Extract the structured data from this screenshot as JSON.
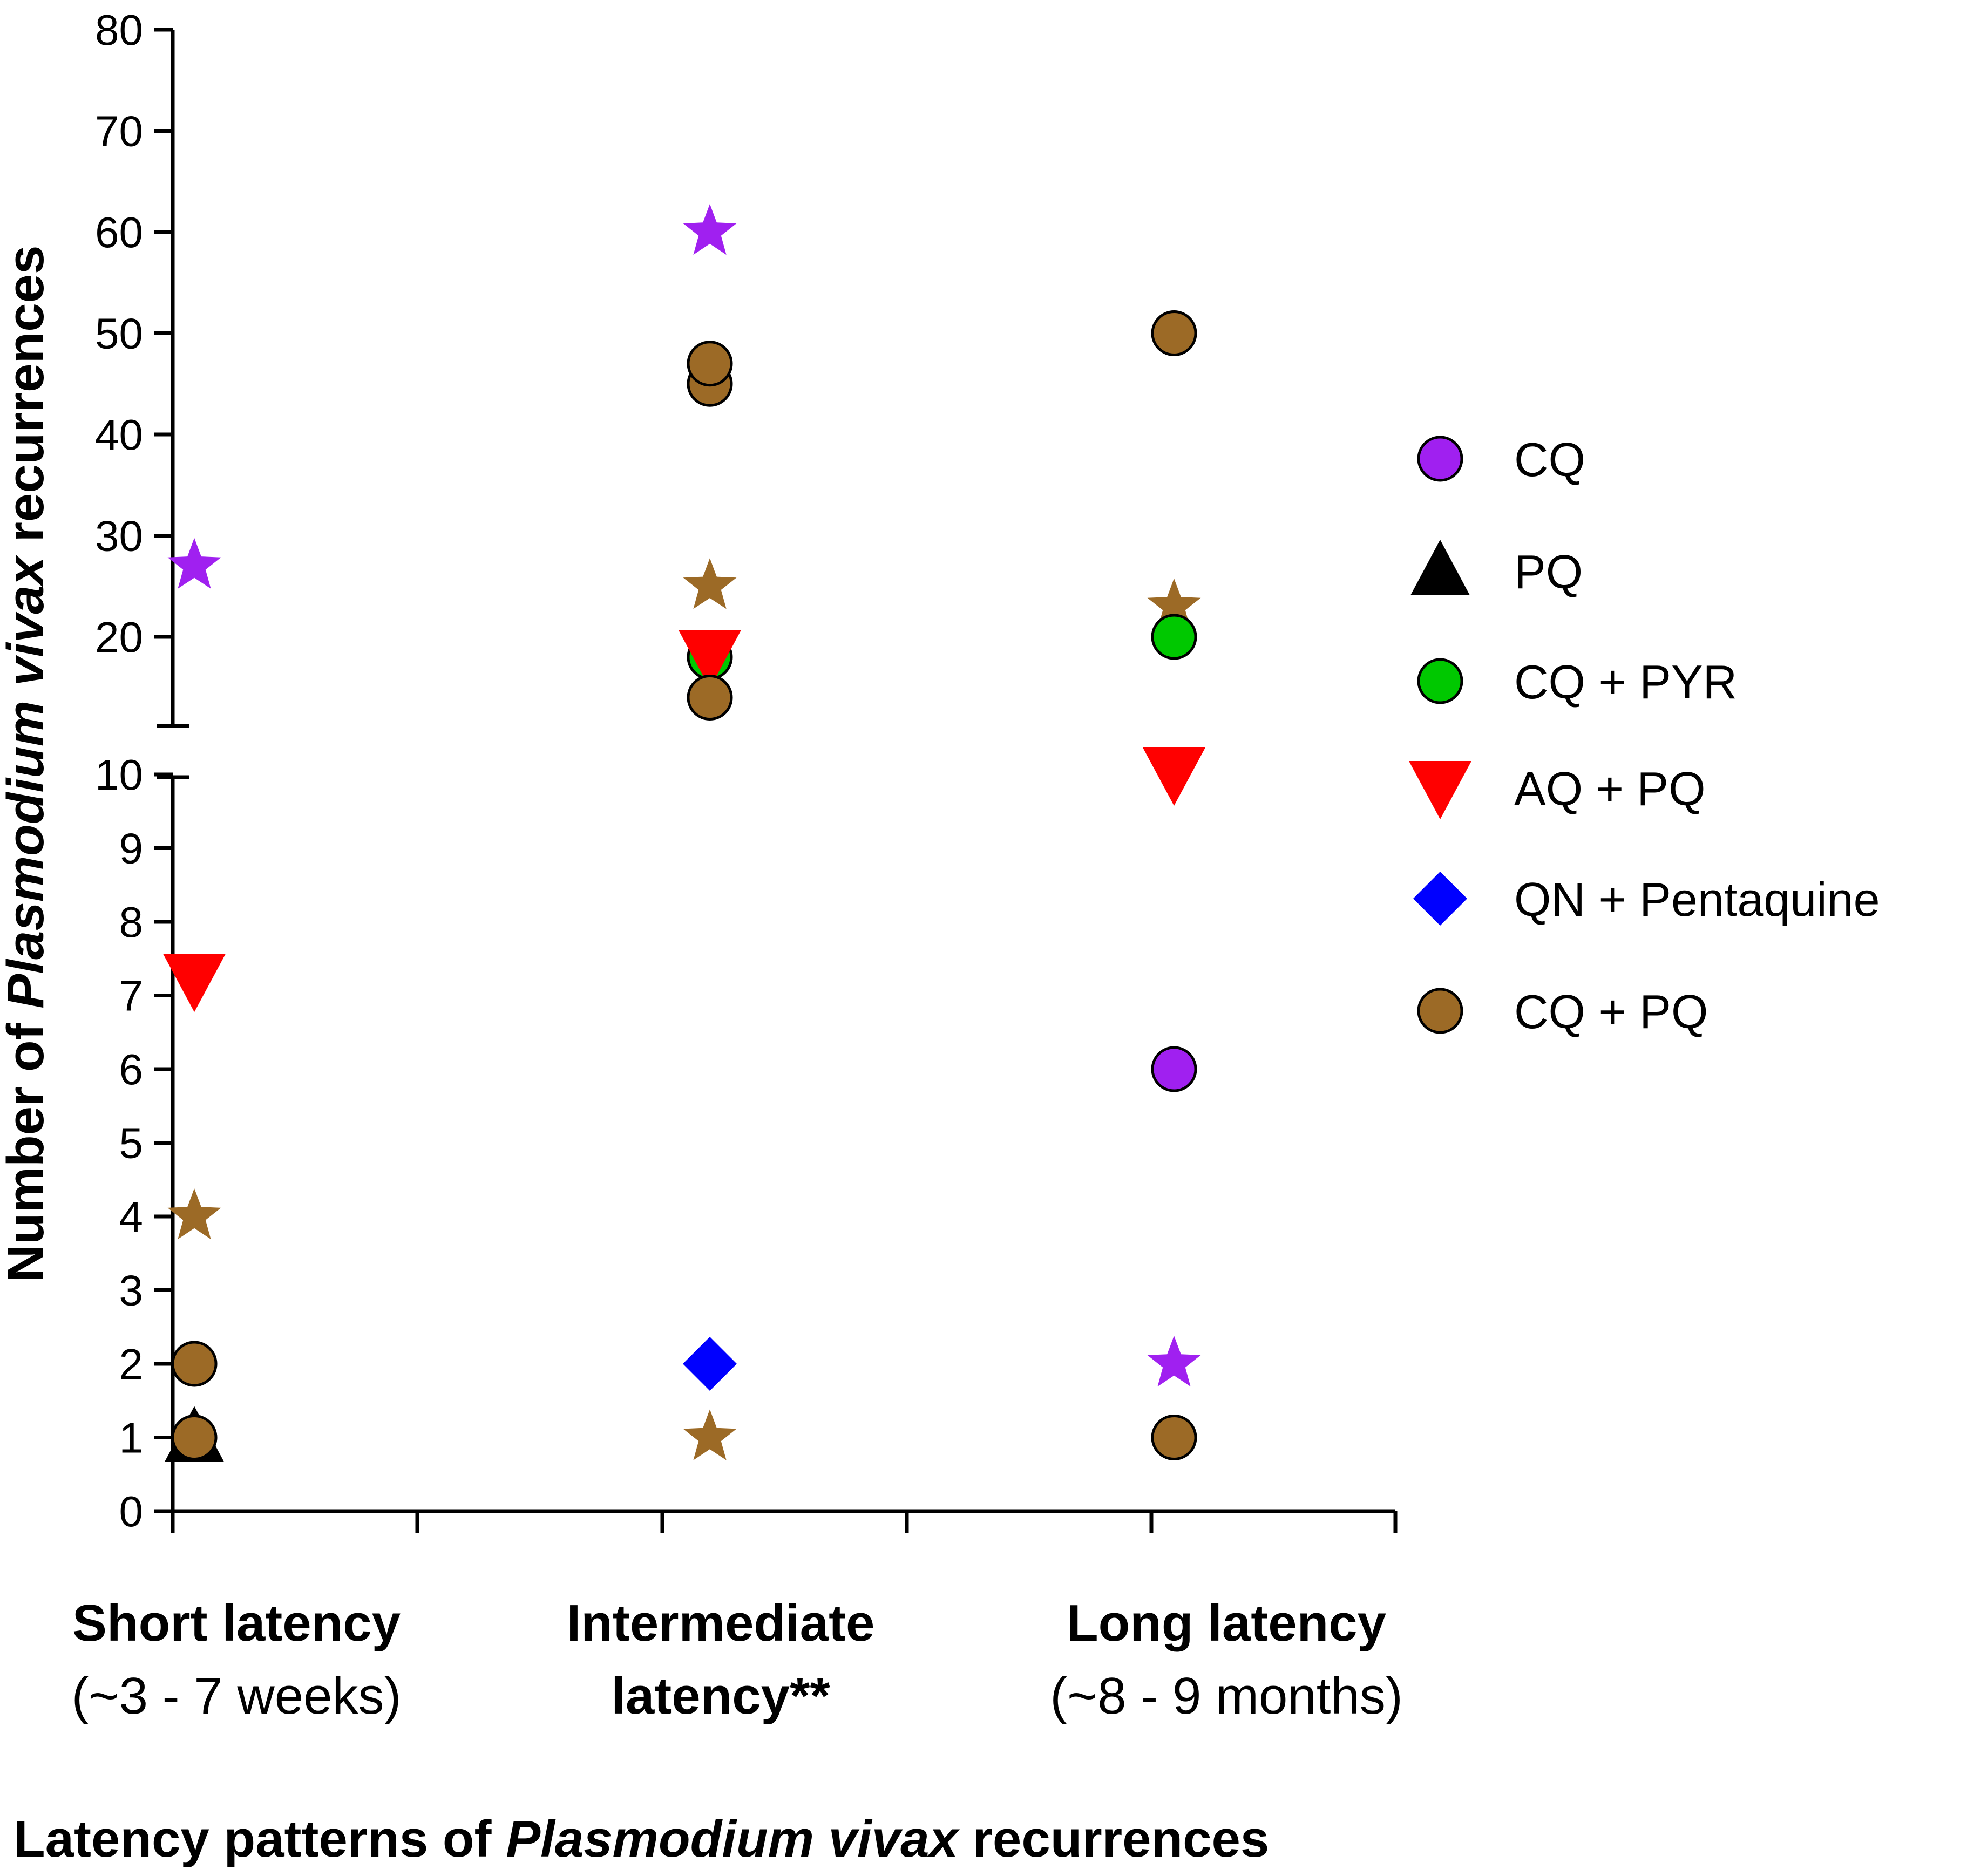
{
  "chart_data": {
    "type": "scatter",
    "title": "",
    "xlabel": {
      "prefix": "Latency patterns of ",
      "italic": "Plasmodium vivax",
      "suffix": " recurrences"
    },
    "ylabel": {
      "prefix": "Number of ",
      "italic": "Plasmodium vivax",
      "suffix": " recurrences"
    },
    "y_axis_break": {
      "lower_range": [
        0,
        10
      ],
      "upper_range": [
        10,
        80
      ],
      "lower_ticks": [
        "0",
        "1",
        "2",
        "3",
        "4",
        "5",
        "6",
        "7",
        "8",
        "9",
        "10"
      ],
      "upper_ticks": [
        "20",
        "30",
        "40",
        "50",
        "60",
        "70",
        "80"
      ]
    },
    "categories": [
      {
        "line1": "Short latency",
        "line2": "(~3 - 7 weeks)",
        "line1_bold": true,
        "line2_bold": false
      },
      {
        "line1": "Intermediate",
        "line2": "latency**",
        "line1_bold": true,
        "line2_bold": true
      },
      {
        "line1": "Long latency",
        "line2": "(~8 - 9 months)",
        "line1_bold": true,
        "line2_bold": false
      }
    ],
    "legend": {
      "position": "right",
      "entries": [
        {
          "label": "CQ",
          "shape": "circle",
          "color": "#a020f0"
        },
        {
          "label": "PQ",
          "shape": "triangle-up",
          "color": "#000000"
        },
        {
          "label": "CQ + PYR",
          "shape": "circle",
          "color": "#00c800"
        },
        {
          "label": "AQ + PQ",
          "shape": "triangle-down",
          "color": "#ff0000"
        },
        {
          "label": "QN + Pentaquine",
          "shape": "diamond",
          "color": "#0000ff"
        },
        {
          "label": "CQ + PQ",
          "shape": "circle",
          "color": "#9c6a26"
        }
      ]
    },
    "points": [
      {
        "category": 0,
        "y": 27,
        "shape": "star",
        "color": "#a020f0",
        "offset": 0.05
      },
      {
        "category": 0,
        "y": 7.2,
        "shape": "triangle-down",
        "color": "#ff0000",
        "offset": 0.05
      },
      {
        "category": 0,
        "y": 4,
        "shape": "star",
        "color": "#9c6a26",
        "offset": 0.05
      },
      {
        "category": 0,
        "y": 2,
        "shape": "circle",
        "color": "#9c6a26",
        "offset": 0.05
      },
      {
        "category": 0,
        "y": 1,
        "shape": "triangle-up",
        "color": "#000000",
        "offset": 0.05
      },
      {
        "category": 0,
        "y": 1,
        "shape": "circle",
        "color": "#9c6a26",
        "offset": 0.05
      },
      {
        "category": 1,
        "y": 60,
        "shape": "star",
        "color": "#a020f0",
        "offset": 0.0
      },
      {
        "category": 1,
        "y": 45,
        "shape": "circle",
        "color": "#9c6a26",
        "offset": 0.0
      },
      {
        "category": 1,
        "y": 47,
        "shape": "circle",
        "color": "#9c6a26",
        "offset": 0.0
      },
      {
        "category": 1,
        "y": 25,
        "shape": "star",
        "color": "#9c6a26",
        "offset": 0.0
      },
      {
        "category": 1,
        "y": 18,
        "shape": "circle",
        "color": "#00c800",
        "offset": 0.0
      },
      {
        "category": 1,
        "y": 18,
        "shape": "triangle-down",
        "color": "#ff0000",
        "offset": 0.0
      },
      {
        "category": 1,
        "y": 14,
        "shape": "circle",
        "color": "#9c6a26",
        "offset": 0.0
      },
      {
        "category": 1,
        "y": 2,
        "shape": "diamond",
        "color": "#0000ff",
        "offset": 0.0
      },
      {
        "category": 1,
        "y": 1,
        "shape": "star",
        "color": "#9c6a26",
        "offset": 0.0
      },
      {
        "category": 2,
        "y": 50,
        "shape": "circle",
        "color": "#9c6a26",
        "offset": 0.0
      },
      {
        "category": 2,
        "y": 23,
        "shape": "star",
        "color": "#9c6a26",
        "offset": 0.0
      },
      {
        "category": 2,
        "y": 20,
        "shape": "circle",
        "color": "#00c800",
        "offset": 0.0
      },
      {
        "category": 2,
        "y": 10,
        "shape": "triangle-down",
        "color": "#ff0000",
        "offset": 0.0
      },
      {
        "category": 2,
        "y": 6,
        "shape": "circle",
        "color": "#a020f0",
        "offset": 0.0
      },
      {
        "category": 2,
        "y": 2,
        "shape": "star",
        "color": "#a020f0",
        "offset": 0.0
      },
      {
        "category": 2,
        "y": 1,
        "shape": "circle",
        "color": "#9c6a26",
        "offset": 0.0
      }
    ]
  }
}
